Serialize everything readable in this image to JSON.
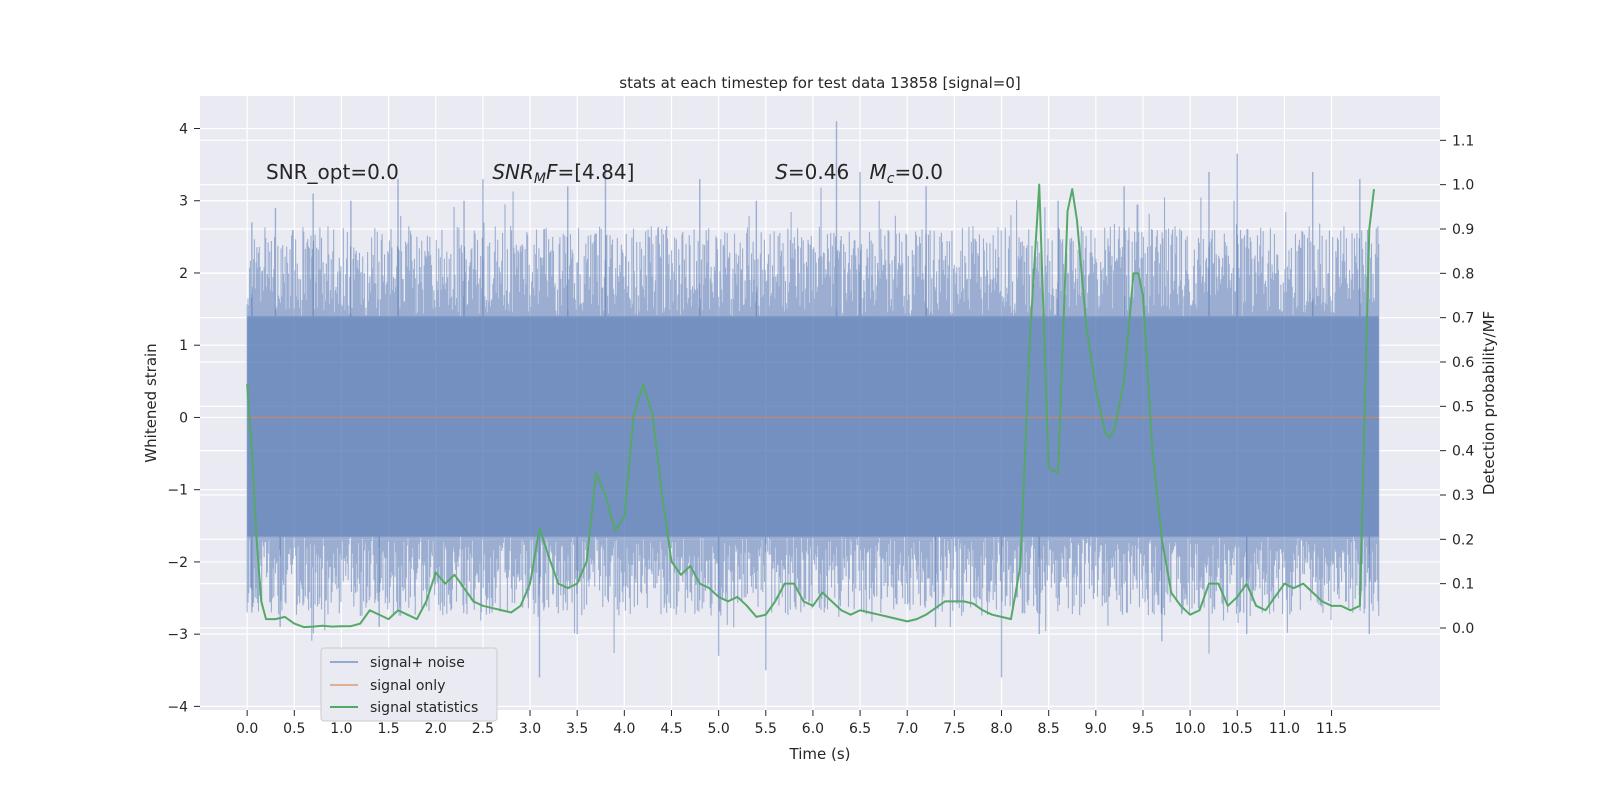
{
  "chart_data": {
    "type": "line",
    "title": "stats at each timestep for test data 13858 [signal=0]",
    "xlabel": "Time (s)",
    "ylabel": "Whitened strain",
    "y2label": "Detection probability/MF",
    "xlim": [
      -0.5,
      12.65
    ],
    "ylim": [
      -4.05,
      4.45
    ],
    "y2lim": [
      -0.185,
      1.2
    ],
    "x_ticks": [
      0.0,
      0.5,
      1.0,
      1.5,
      2.0,
      2.5,
      3.0,
      3.5,
      4.0,
      4.5,
      5.0,
      5.5,
      6.0,
      6.5,
      7.0,
      7.5,
      8.0,
      8.5,
      9.0,
      9.5,
      10.0,
      10.5,
      11.0,
      11.5
    ],
    "x_tick_labels": [
      "0.0",
      "0.5",
      "1.0",
      "1.5",
      "2.0",
      "2.5",
      "3.0",
      "3.5",
      "4.0",
      "4.5",
      "5.0",
      "5.5",
      "6.0",
      "6.5",
      "7.0",
      "7.5",
      "8.0",
      "8.5",
      "9.0",
      "9.5",
      "10.0",
      "10.5",
      "11.0",
      "11.5"
    ],
    "y_ticks": [
      -4,
      -3,
      -2,
      -1,
      0,
      1,
      2,
      3,
      4
    ],
    "y_tick_labels": [
      "−4",
      "−3",
      "−2",
      "−1",
      "0",
      "1",
      "2",
      "3",
      "4"
    ],
    "y2_ticks": [
      0.0,
      0.1,
      0.2,
      0.3,
      0.4,
      0.5,
      0.6,
      0.7,
      0.8,
      0.9,
      1.0,
      1.1
    ],
    "y2_tick_labels": [
      "0.0",
      "0.1",
      "0.2",
      "0.3",
      "0.4",
      "0.5",
      "0.6",
      "0.7",
      "0.8",
      "0.9",
      "1.0",
      "1.1"
    ],
    "grid": true,
    "legend_position": "lower-left",
    "annotations": [
      {
        "text": "SNR_opt=0.0",
        "x": 0.2,
        "y": 3.3
      },
      {
        "text": "SNR_MF=[4.84]",
        "x": 2.6,
        "y": 3.3,
        "math": "SNRMF"
      },
      {
        "text": "S=0.46",
        "x": 5.6,
        "y": 3.3,
        "math": "S"
      },
      {
        "text": "M_c=0.0",
        "x": 6.6,
        "y": 3.3,
        "math": "Mc"
      }
    ],
    "series": [
      {
        "name": "signal+ noise",
        "axis": "left",
        "color": "#4c72b0",
        "opacity": 0.5,
        "x_range": [
          0.0,
          12.0
        ],
        "band": {
          "ymin": -1.65,
          "ymax": 1.4
        },
        "peaks": [
          [
            0.05,
            2.7
          ],
          [
            0.3,
            2.9
          ],
          [
            0.7,
            3.1
          ],
          [
            1.1,
            3.0
          ],
          [
            1.6,
            3.3
          ],
          [
            2.3,
            3.0
          ],
          [
            2.5,
            3.3
          ],
          [
            3.4,
            3.2
          ],
          [
            3.8,
            3.5
          ],
          [
            4.8,
            3.3
          ],
          [
            5.4,
            3.0
          ],
          [
            6.25,
            4.1
          ],
          [
            6.5,
            3.4
          ],
          [
            7.2,
            3.2
          ],
          [
            8.6,
            3.0
          ],
          [
            9.3,
            3.2
          ],
          [
            10.2,
            3.4
          ],
          [
            10.5,
            3.65
          ],
          [
            11.3,
            3.4
          ],
          [
            11.8,
            3.3
          ]
        ],
        "troughs": [
          [
            0.05,
            -2.7
          ],
          [
            0.35,
            -2.9
          ],
          [
            1.4,
            -2.9
          ],
          [
            3.1,
            -3.6
          ],
          [
            3.5,
            -3.0
          ],
          [
            5.0,
            -3.3
          ],
          [
            5.5,
            -3.5
          ],
          [
            7.3,
            -2.9
          ],
          [
            8.0,
            -3.6
          ],
          [
            8.4,
            -3.0
          ],
          [
            9.7,
            -3.1
          ],
          [
            10.6,
            -3.0
          ],
          [
            11.9,
            -3.0
          ]
        ]
      },
      {
        "name": "signal only",
        "axis": "left",
        "color": "#dd8452",
        "x": [
          0.0,
          12.0
        ],
        "y": [
          0.0,
          0.0
        ]
      },
      {
        "name": "signal statistics",
        "axis": "right",
        "color": "#55a868",
        "x": [
          0.0,
          0.05,
          0.1,
          0.15,
          0.2,
          0.3,
          0.4,
          0.5,
          0.6,
          0.7,
          0.8,
          0.9,
          1.0,
          1.1,
          1.2,
          1.3,
          1.4,
          1.5,
          1.6,
          1.7,
          1.8,
          1.9,
          2.0,
          2.1,
          2.2,
          2.3,
          2.4,
          2.5,
          2.6,
          2.7,
          2.8,
          2.9,
          3.0,
          3.1,
          3.2,
          3.3,
          3.4,
          3.5,
          3.6,
          3.7,
          3.8,
          3.9,
          4.0,
          4.1,
          4.2,
          4.3,
          4.4,
          4.5,
          4.6,
          4.7,
          4.8,
          4.9,
          5.0,
          5.1,
          5.2,
          5.3,
          5.4,
          5.5,
          5.6,
          5.7,
          5.8,
          5.9,
          6.0,
          6.1,
          6.2,
          6.3,
          6.4,
          6.5,
          6.6,
          6.7,
          6.8,
          6.9,
          7.0,
          7.1,
          7.2,
          7.3,
          7.4,
          7.5,
          7.6,
          7.7,
          7.8,
          7.9,
          8.0,
          8.1,
          8.2,
          8.3,
          8.4,
          8.5,
          8.6,
          8.7,
          8.75,
          8.8,
          8.9,
          9.0,
          9.1,
          9.15,
          9.2,
          9.3,
          9.4,
          9.45,
          9.5,
          9.6,
          9.7,
          9.8,
          9.9,
          10.0,
          10.1,
          10.2,
          10.3,
          10.4,
          10.5,
          10.6,
          10.7,
          10.8,
          10.9,
          11.0,
          11.1,
          11.2,
          11.3,
          11.4,
          11.5,
          11.6,
          11.7,
          11.8,
          11.9,
          11.95
        ],
        "y": [
          0.55,
          0.4,
          0.2,
          0.06,
          0.02,
          0.02,
          0.025,
          0.01,
          0.002,
          0.003,
          0.005,
          0.003,
          0.004,
          0.004,
          0.01,
          0.04,
          0.03,
          0.02,
          0.04,
          0.03,
          0.02,
          0.06,
          0.125,
          0.1,
          0.12,
          0.09,
          0.06,
          0.05,
          0.045,
          0.04,
          0.035,
          0.05,
          0.1,
          0.225,
          0.16,
          0.1,
          0.09,
          0.1,
          0.15,
          0.35,
          0.3,
          0.22,
          0.25,
          0.48,
          0.55,
          0.48,
          0.3,
          0.15,
          0.12,
          0.14,
          0.1,
          0.09,
          0.07,
          0.06,
          0.07,
          0.05,
          0.025,
          0.03,
          0.06,
          0.1,
          0.1,
          0.06,
          0.05,
          0.08,
          0.06,
          0.04,
          0.03,
          0.04,
          0.035,
          0.03,
          0.025,
          0.02,
          0.015,
          0.02,
          0.03,
          0.045,
          0.06,
          0.06,
          0.06,
          0.055,
          0.04,
          0.03,
          0.025,
          0.02,
          0.14,
          0.65,
          1.0,
          0.36,
          0.35,
          0.94,
          0.99,
          0.92,
          0.68,
          0.54,
          0.44,
          0.43,
          0.45,
          0.56,
          0.8,
          0.8,
          0.75,
          0.4,
          0.2,
          0.08,
          0.05,
          0.03,
          0.04,
          0.1,
          0.1,
          0.05,
          0.07,
          0.1,
          0.05,
          0.04,
          0.07,
          0.1,
          0.09,
          0.1,
          0.08,
          0.06,
          0.05,
          0.05,
          0.04,
          0.05,
          0.9,
          0.99
        ]
      }
    ]
  },
  "legend": {
    "items": [
      {
        "label": "signal+ noise",
        "color": "#4c72b0"
      },
      {
        "label": "signal only",
        "color": "#dd8452"
      },
      {
        "label": "signal statistics",
        "color": "#55a868"
      }
    ]
  },
  "style": {
    "plot_bg": "#eaeaf2",
    "grid_color": "#ffffff",
    "text_color": "#262626"
  }
}
